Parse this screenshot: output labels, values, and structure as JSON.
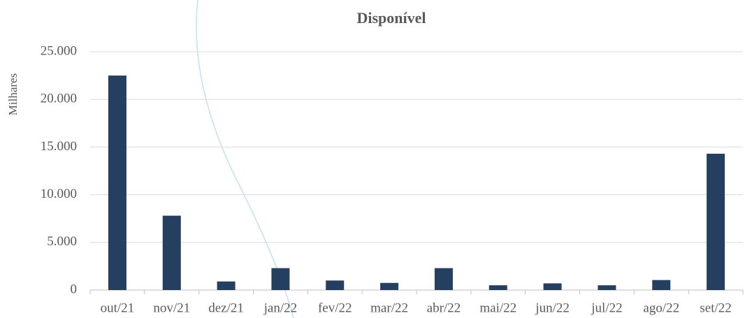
{
  "chart_data": {
    "type": "bar",
    "title": "Disponível",
    "y_label": "Milhares",
    "categories": [
      "out/21",
      "nov/21",
      "dez/21",
      "jan/22",
      "fev/22",
      "mar/22",
      "abr/22",
      "mai/22",
      "jun/22",
      "jul/22",
      "ago/22",
      "set/22"
    ],
    "values": [
      22500,
      7800,
      900,
      2300,
      1000,
      750,
      2300,
      500,
      700,
      500,
      1050,
      14300
    ],
    "color": "#243f60",
    "ylim": [
      0,
      25000
    ],
    "yticks": [
      0,
      {
        "value": 5000,
        "label": "5.000"
      },
      {
        "value": 10000,
        "label": "10.000"
      },
      {
        "value": 15000,
        "label": "15.000"
      },
      {
        "value": 20000,
        "label": "20.000"
      },
      {
        "value": 25000,
        "label": "25.000"
      }
    ],
    "grid": true
  }
}
